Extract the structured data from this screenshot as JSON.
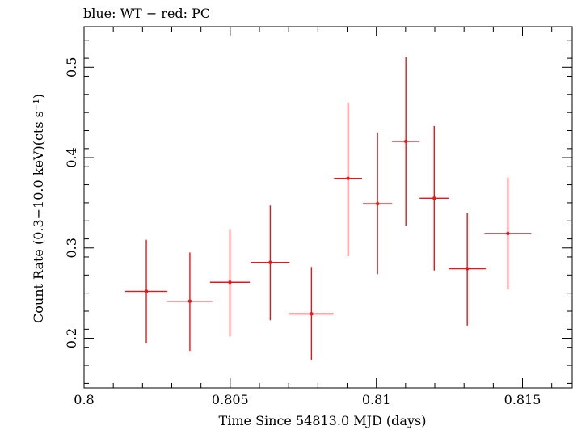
{
  "chart_data": {
    "type": "scatter",
    "title": "blue: WT − red: PC",
    "xlabel": "Time Since 54813.0 MJD (days)",
    "ylabel": "Count Rate (0.3−10.0 keV)(cts s⁻¹)",
    "xlim": [
      0.8,
      0.8167
    ],
    "ylim": [
      0.145,
      0.545
    ],
    "x_ticks": [
      {
        "value": 0.8,
        "label": "0.8"
      },
      {
        "value": 0.805,
        "label": "0.805"
      },
      {
        "value": 0.81,
        "label": "0.81"
      },
      {
        "value": 0.815,
        "label": "0.815"
      }
    ],
    "y_ticks": [
      {
        "value": 0.2,
        "label": "0.2"
      },
      {
        "value": 0.3,
        "label": "0.3"
      },
      {
        "value": 0.4,
        "label": "0.4"
      },
      {
        "value": 0.5,
        "label": "0.5"
      }
    ],
    "series": [
      {
        "name": "PC",
        "color": "#e8161b",
        "points": [
          {
            "x": 0.80213,
            "y": 0.252,
            "xerr": 0.00072,
            "ylo": 0.195,
            "yhi": 0.309
          },
          {
            "x": 0.80362,
            "y": 0.241,
            "xerr": 0.00077,
            "ylo": 0.186,
            "yhi": 0.295
          },
          {
            "x": 0.80499,
            "y": 0.262,
            "xerr": 0.00068,
            "ylo": 0.202,
            "yhi": 0.321
          },
          {
            "x": 0.80637,
            "y": 0.284,
            "xerr": 0.00066,
            "ylo": 0.22,
            "yhi": 0.347
          },
          {
            "x": 0.80778,
            "y": 0.227,
            "xerr": 0.00075,
            "ylo": 0.176,
            "yhi": 0.279
          },
          {
            "x": 0.80903,
            "y": 0.377,
            "xerr": 0.00048,
            "ylo": 0.291,
            "yhi": 0.461
          },
          {
            "x": 0.81004,
            "y": 0.349,
            "xerr": 0.0005,
            "ylo": 0.271,
            "yhi": 0.428
          },
          {
            "x": 0.81101,
            "y": 0.418,
            "xerr": 0.00047,
            "ylo": 0.324,
            "yhi": 0.511
          },
          {
            "x": 0.81198,
            "y": 0.355,
            "xerr": 0.0005,
            "ylo": 0.275,
            "yhi": 0.435
          },
          {
            "x": 0.81311,
            "y": 0.277,
            "xerr": 0.00063,
            "ylo": 0.214,
            "yhi": 0.339
          },
          {
            "x": 0.8145,
            "y": 0.316,
            "xerr": 0.0008,
            "ylo": 0.254,
            "yhi": 0.378
          }
        ]
      }
    ],
    "grid": false
  }
}
